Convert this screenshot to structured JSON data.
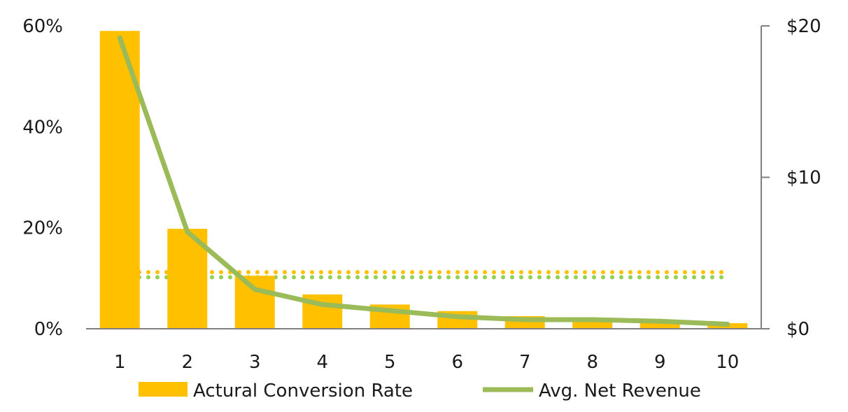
{
  "chart_data": {
    "type": "bar",
    "title": "",
    "xlabel": "",
    "ylabel": "",
    "categories": [
      "1",
      "2",
      "3",
      "4",
      "5",
      "6",
      "7",
      "8",
      "9",
      "10"
    ],
    "series": [
      {
        "name": "Actural Conversion Rate",
        "type": "bar",
        "axis": "left",
        "color": "#FFC000",
        "values": [
          59,
          19.8,
          10.5,
          6.8,
          4.8,
          3.5,
          2.5,
          2.1,
          1.7,
          1.1
        ]
      },
      {
        "name": "Avg. Net Revenue",
        "type": "line",
        "axis": "right",
        "color": "#9BBB59",
        "values": [
          19.2,
          6.4,
          2.6,
          1.6,
          1.2,
          0.8,
          0.6,
          0.6,
          0.5,
          0.3
        ]
      }
    ],
    "reference_lines": [
      {
        "axis": "left",
        "value": 11.2,
        "color": "#FFC000",
        "style": "dotted"
      },
      {
        "axis": "left",
        "value": 10.2,
        "color": "#92D050",
        "style": "dotted"
      }
    ],
    "y_left": {
      "ylim": [
        0,
        60
      ],
      "ticks": [
        0,
        20,
        40,
        60
      ],
      "tick_labels": [
        "0%",
        "20%",
        "40%",
        "60%"
      ]
    },
    "y_right": {
      "ylim": [
        0,
        20
      ],
      "ticks": [
        0,
        10,
        20
      ],
      "tick_labels": [
        "$0",
        "$10",
        "$20"
      ]
    },
    "grid": false,
    "legend_position": "bottom"
  }
}
